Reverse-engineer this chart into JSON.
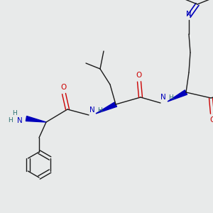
{
  "bg_color": "#e8eaea",
  "bond_color": "#1a1a1a",
  "N_color": "#0000bb",
  "O_color": "#cc0000",
  "H_color": "#2a7070",
  "figsize": [
    3.0,
    3.0
  ],
  "dpi": 100,
  "xlim": [
    0,
    300
  ],
  "ylim": [
    0,
    300
  ]
}
